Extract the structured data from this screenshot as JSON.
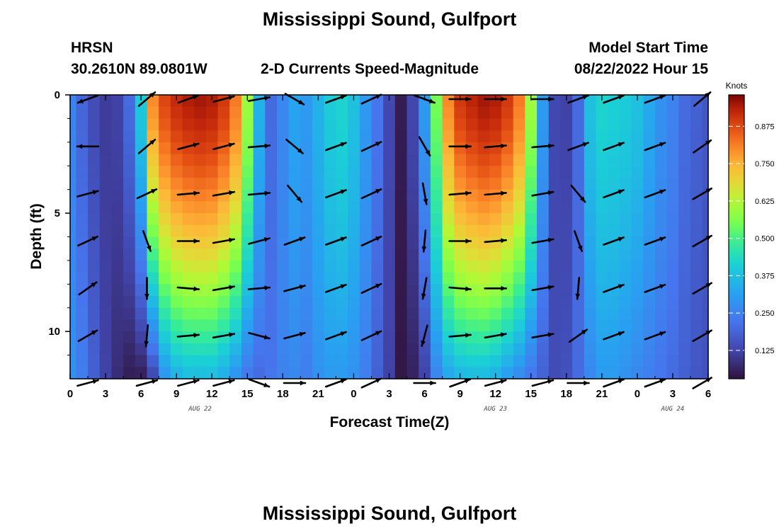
{
  "title": "Mississippi Sound, Gulfport",
  "station_id": "HRSN",
  "station_coords": "30.2610N  89.0801W",
  "subtitle": "2-D Currents Speed-Magnitude",
  "model_start_label": "Model Start Time",
  "model_start_value": "08/22/2022 Hour 15",
  "footer_title": "Mississippi Sound, Gulfport",
  "chart_data": {
    "type": "heatmap",
    "title": "Mississippi Sound, Gulfport",
    "subtitle": "2-D Currents Speed-Magnitude",
    "xlabel": "Forecast Time(Z)",
    "ylabel": "Depth (ft)",
    "x_ticks": [
      "0",
      "3",
      "6",
      "9",
      "12",
      "15",
      "18",
      "21",
      "0",
      "3",
      "6",
      "9",
      "12",
      "15",
      "18",
      "21",
      "0",
      "3",
      "6"
    ],
    "x_tick_hours": [
      0,
      3,
      6,
      9,
      12,
      15,
      18,
      21,
      24,
      27,
      30,
      33,
      36,
      39,
      42,
      45,
      48,
      51,
      54
    ],
    "date_labels": [
      {
        "text": "AUG 22",
        "hour": 11
      },
      {
        "text": "AUG 23",
        "hour": 36
      },
      {
        "text": "AUG 24",
        "hour": 51
      }
    ],
    "y_ticks": [
      "0",
      "5",
      "10"
    ],
    "y_tick_values": [
      0,
      5,
      10
    ],
    "ylim": [
      0,
      12
    ],
    "xlim": [
      0,
      54
    ],
    "colorbar": {
      "label": "Knots",
      "ticks": [
        "0.875",
        "0.750",
        "0.625",
        "0.500",
        "0.375",
        "0.250",
        "0.125"
      ],
      "tick_values": [
        0.875,
        0.75,
        0.625,
        0.5,
        0.375,
        0.25,
        0.125
      ],
      "range": [
        0.03,
        0.98
      ]
    },
    "speed_profile": {
      "hours": [
        0,
        1,
        2,
        3,
        4,
        5,
        6,
        7,
        8,
        9,
        10,
        11,
        12,
        13,
        14,
        15,
        16,
        17,
        18,
        19,
        20,
        21,
        22,
        23,
        24,
        25,
        26,
        27,
        28,
        29,
        30,
        31,
        32,
        33,
        34,
        35,
        36,
        37,
        38,
        39,
        40,
        41,
        42,
        43,
        44,
        45,
        46,
        47,
        48,
        49,
        50,
        51,
        52,
        53,
        54
      ],
      "surface": [
        0.25,
        0.19,
        0.14,
        0.11,
        0.12,
        0.2,
        0.4,
        0.8,
        0.88,
        0.92,
        0.94,
        0.95,
        0.94,
        0.9,
        0.82,
        0.6,
        0.35,
        0.2,
        0.26,
        0.32,
        0.3,
        0.35,
        0.4,
        0.42,
        0.38,
        0.3,
        0.22,
        0.13,
        0.05,
        0.13,
        0.3,
        0.55,
        0.8,
        0.9,
        0.93,
        0.95,
        0.94,
        0.9,
        0.82,
        0.6,
        0.3,
        0.13,
        0.12,
        0.2,
        0.38,
        0.42,
        0.41,
        0.4,
        0.38,
        0.33,
        0.28,
        0.25,
        0.2,
        0.18,
        0.16
      ],
      "bottom": [
        0.28,
        0.24,
        0.18,
        0.12,
        0.08,
        0.05,
        0.05,
        0.12,
        0.28,
        0.34,
        0.36,
        0.36,
        0.36,
        0.33,
        0.28,
        0.22,
        0.2,
        0.22,
        0.25,
        0.26,
        0.24,
        0.28,
        0.3,
        0.3,
        0.28,
        0.24,
        0.18,
        0.12,
        0.04,
        0.06,
        0.12,
        0.25,
        0.32,
        0.35,
        0.36,
        0.36,
        0.34,
        0.3,
        0.26,
        0.22,
        0.18,
        0.14,
        0.15,
        0.2,
        0.26,
        0.3,
        0.3,
        0.28,
        0.26,
        0.24,
        0.22,
        0.2,
        0.18,
        0.16,
        0.15
      ]
    },
    "vectors": {
      "hours": [
        1.5,
        6.5,
        10,
        13,
        16,
        19,
        22.5,
        25.5,
        30,
        33,
        36,
        40,
        43,
        46,
        49.5,
        53.5
      ],
      "depths": [
        0,
        2,
        4,
        6,
        8,
        10,
        12
      ],
      "angles_deg": [
        [
          200,
          40,
          20,
          15,
          10,
          -30,
          20,
          25,
          -20,
          0,
          0,
          0,
          20,
          20,
          20,
          40
        ],
        [
          180,
          40,
          15,
          15,
          5,
          -40,
          20,
          25,
          -60,
          0,
          5,
          5,
          20,
          20,
          20,
          35
        ],
        [
          15,
          25,
          5,
          10,
          5,
          -50,
          20,
          25,
          -80,
          5,
          5,
          10,
          -50,
          20,
          20,
          30
        ],
        [
          25,
          -70,
          0,
          10,
          15,
          20,
          20,
          25,
          -95,
          0,
          5,
          10,
          -70,
          20,
          20,
          30
        ],
        [
          35,
          -90,
          -5,
          10,
          5,
          15,
          20,
          25,
          -100,
          -5,
          0,
          10,
          -95,
          20,
          20,
          30
        ],
        [
          30,
          -95,
          5,
          10,
          -15,
          15,
          20,
          25,
          -105,
          5,
          10,
          10,
          35,
          20,
          20,
          30
        ],
        [
          15,
          15,
          15,
          15,
          -20,
          0,
          20,
          25,
          0,
          20,
          15,
          15,
          0,
          20,
          20,
          30
        ]
      ]
    }
  }
}
